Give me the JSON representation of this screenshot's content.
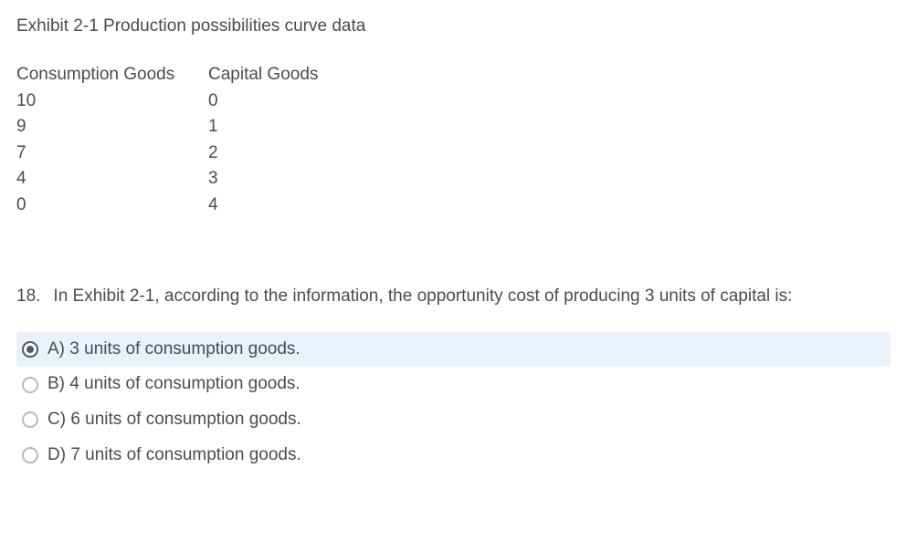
{
  "exhibit": {
    "title": "Exhibit 2-1 Production possibilities curve data",
    "columns": [
      "Consumption Goods",
      "Capital Goods"
    ],
    "rows": [
      [
        "10",
        "0"
      ],
      [
        "9",
        "1"
      ],
      [
        "7",
        "2"
      ],
      [
        "4",
        "3"
      ],
      [
        "0",
        "4"
      ]
    ]
  },
  "question": {
    "number": "18.",
    "text": "In Exhibit 2-1, according to the information, the opportunity cost of producing 3 units of capital is:"
  },
  "options": [
    {
      "label": "A) 3 units of consumption goods.",
      "selected": true
    },
    {
      "label": "B) 4 units of consumption goods.",
      "selected": false
    },
    {
      "label": "C) 6 units of consumption goods.",
      "selected": false
    },
    {
      "label": "D) 7 units of consumption goods.",
      "selected": false
    }
  ],
  "colors": {
    "text": "#494c4e",
    "selected_bg": "#e9f2fa",
    "radio_border": "#b7babc",
    "radio_selected": "#565a5c",
    "background": "#ffffff"
  }
}
